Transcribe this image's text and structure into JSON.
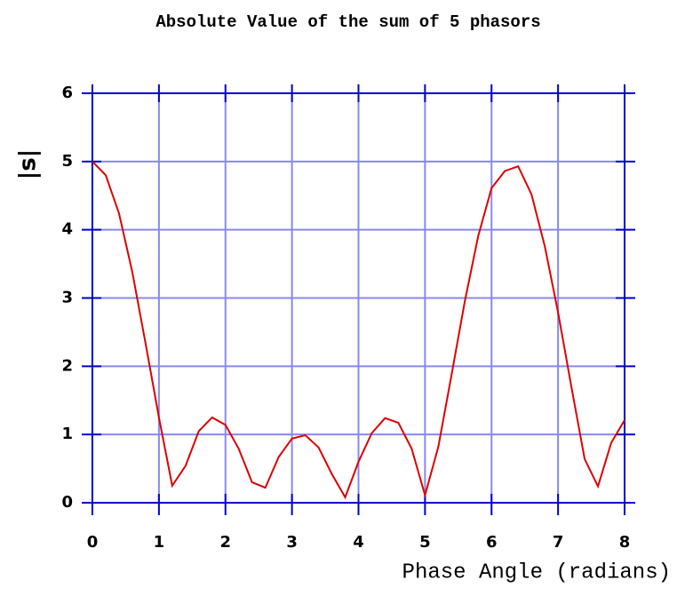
{
  "chart_data": {
    "type": "line",
    "title": "Absolute Value of the sum of 5 phasors",
    "x_label": "Phase Angle (radians)",
    "y_label": "|s|",
    "x": [
      0,
      0.2,
      0.4,
      0.6,
      0.8,
      1.0,
      1.2,
      1.4,
      1.6,
      1.8,
      2.0,
      2.2,
      2.4,
      2.6,
      2.8,
      3.0,
      3.2,
      3.4,
      3.6,
      3.8,
      4.0,
      4.2,
      4.4,
      4.6,
      4.8,
      5.0,
      5.2,
      5.4,
      5.6,
      5.8,
      6.0,
      6.2,
      6.4,
      6.6,
      6.8,
      7.0,
      7.2,
      7.4,
      7.6,
      7.8,
      8.0
    ],
    "series": [
      {
        "color": "#dd0000",
        "values": [
          5,
          4.8,
          4.24,
          3.38,
          2.33,
          1.25,
          0.25,
          0.54,
          1.05,
          1.25,
          1.14,
          0.79,
          0.3,
          0.22,
          0.67,
          0.94,
          0.99,
          0.81,
          0.42,
          0.08,
          0.6,
          1.02,
          1.24,
          1.17,
          0.79,
          0.11,
          0.82,
          1.88,
          2.96,
          3.91,
          4.61,
          4.86,
          4.93,
          4.52,
          3.76,
          2.79,
          1.7,
          0.64,
          0.24,
          0.88,
          1.21
        ]
      }
    ],
    "xlim": [
      0,
      8
    ],
    "xticks": [
      0,
      1,
      2,
      3,
      4,
      5,
      6,
      7,
      8
    ],
    "ylim": [
      0,
      6
    ],
    "yticks": [
      0,
      1,
      2,
      3,
      4,
      5,
      6
    ],
    "grid": true,
    "grid_color": "#8888ee",
    "axis_color": "#0000cc"
  }
}
